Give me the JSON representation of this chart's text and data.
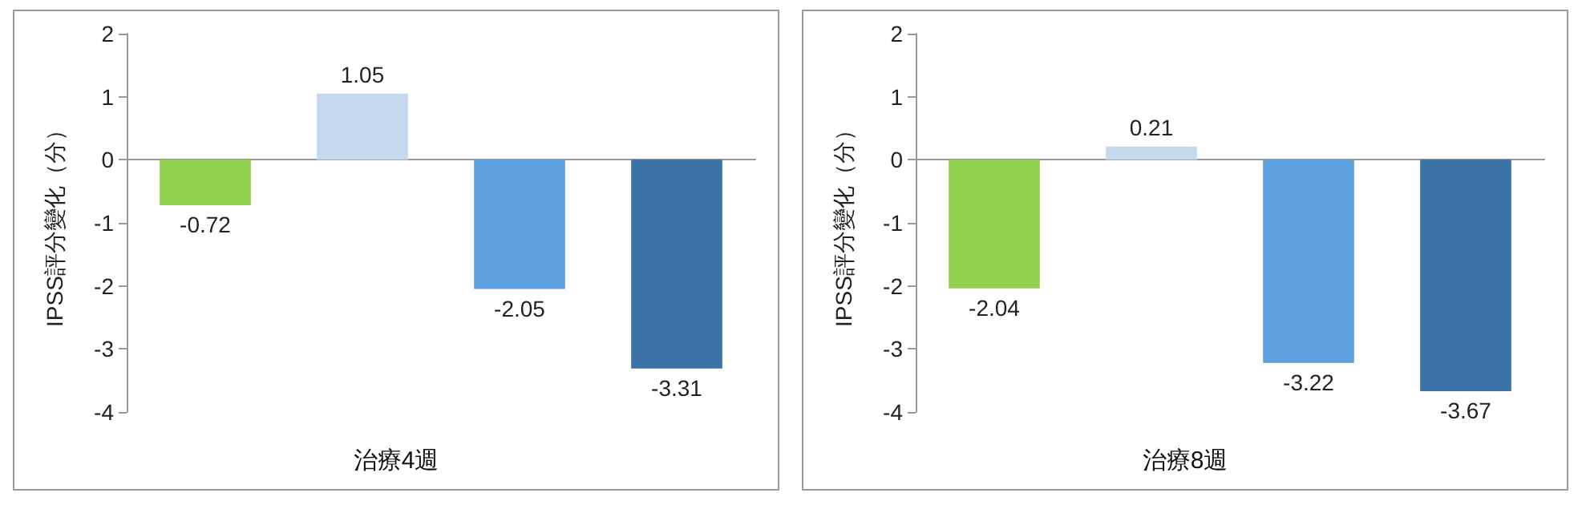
{
  "chart_data": [
    {
      "type": "bar",
      "xlabel": "治療4週",
      "ylabel": "IPSS評分變化（分）",
      "categories": [
        null,
        null,
        null,
        null
      ],
      "values": [
        -0.72,
        1.05,
        -2.05,
        -3.31
      ],
      "colors": [
        "#92d050",
        "#c6d9ef",
        "#5fa0e0",
        "#3b72a8"
      ],
      "ylim": [
        -4,
        2
      ],
      "yticks": [
        -4,
        -3,
        -2,
        -1,
        0,
        1,
        2
      ],
      "data_labels": true
    },
    {
      "type": "bar",
      "xlabel": "治療8週",
      "ylabel": "IPSS評分變化（分）",
      "categories": [
        null,
        null,
        null,
        null
      ],
      "values": [
        -2.04,
        0.21,
        -3.22,
        -3.67
      ],
      "colors": [
        "#92d050",
        "#c6d9ef",
        "#5fa0e0",
        "#3b72a8"
      ],
      "ylim": [
        -4,
        2
      ],
      "yticks": [
        -4,
        -3,
        -2,
        -1,
        0,
        1,
        2
      ],
      "data_labels": true
    }
  ]
}
